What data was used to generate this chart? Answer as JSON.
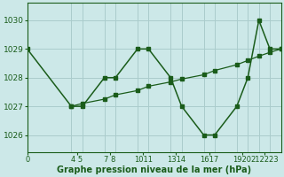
{
  "xlabel": "Graphe pression niveau de la mer (hPa)",
  "bg_color": "#cce8e8",
  "grid_color": "#aacccc",
  "line_color": "#1a5c1a",
  "xlim": [
    0,
    23
  ],
  "ylim": [
    1025.4,
    1030.6
  ],
  "yticks": [
    1026,
    1027,
    1028,
    1029,
    1030
  ],
  "xtick_positions": [
    0,
    4,
    5,
    7,
    8,
    10,
    11,
    13,
    14,
    16,
    17,
    19,
    20,
    21,
    22,
    23
  ],
  "xtick_labels_grouped": [
    [
      0,
      "0"
    ],
    [
      4.5,
      "4 5"
    ],
    [
      7.5,
      "7 8"
    ],
    [
      10.5,
      "1011"
    ],
    [
      13.5,
      "1314"
    ],
    [
      16.5,
      "1617"
    ],
    [
      19.5,
      "1920"
    ],
    [
      21.5,
      "212223"
    ]
  ],
  "series1_x": [
    0,
    4,
    5,
    7,
    8,
    10,
    11,
    13,
    14,
    16,
    17,
    19,
    20,
    21,
    22,
    23
  ],
  "series1_y": [
    1029,
    1027,
    1027,
    1028,
    1028,
    1029,
    1029,
    1028,
    1027,
    1026,
    1026,
    1027,
    1028,
    1030,
    1029,
    1029
  ],
  "series2_x": [
    4,
    5,
    7,
    8,
    10,
    11,
    13,
    14,
    16,
    17,
    19,
    20,
    21,
    22,
    23
  ],
  "series2_y": [
    1027.0,
    1027.1,
    1027.25,
    1027.4,
    1027.55,
    1027.7,
    1027.85,
    1027.95,
    1028.1,
    1028.25,
    1028.45,
    1028.6,
    1028.75,
    1028.88,
    1029.0
  ]
}
